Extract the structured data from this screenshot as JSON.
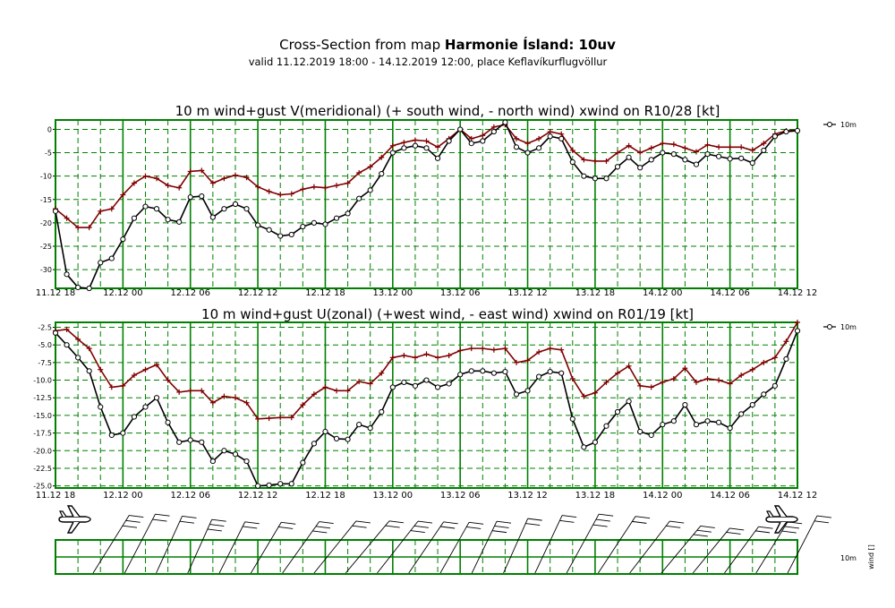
{
  "header": {
    "title_prefix": "Cross-Section from map ",
    "title_bold": "Harmonie Ísland: 10uv",
    "subtitle": "valid 11.12.2019 18:00 - 14.12.2019 12:00, place Keflavíkurflugvöllur"
  },
  "colors": {
    "grid": "#008000",
    "wind": "#000000",
    "gust": "#800000"
  },
  "x_labels": [
    "11.12 18",
    "12.12 00",
    "12.12 06",
    "12.12 12",
    "12.12 18",
    "13.12 00",
    "13.12 06",
    "13.12 12",
    "13.12 18",
    "14.12 00",
    "14.12 06",
    "14.12 12"
  ],
  "legend_label": "10m",
  "barb_panel": {
    "level_label": "10m",
    "axis_label": "wind []"
  },
  "chart_data": [
    {
      "type": "line",
      "title": "10 m wind+gust V(meridional) (+ south wind, - north wind) xwind on R10/28 [kt]",
      "ylim": [
        -34,
        2
      ],
      "yticks": [
        0,
        -5,
        -10,
        -15,
        -20,
        -25,
        -30
      ],
      "ytick_labels": [
        "0",
        "-5",
        "-10",
        "-15",
        "-20",
        "-25",
        "-30"
      ],
      "series": [
        {
          "name": "10m",
          "values": [
            -17.5,
            -31,
            -33.8,
            -34,
            -28.5,
            -27.6,
            -23.5,
            -19,
            -16.5,
            -17,
            -19.3,
            -19.8,
            -14.5,
            -14.3,
            -18.8,
            -17,
            -16,
            -17,
            -20.5,
            -21.5,
            -22.8,
            -22.5,
            -20.8,
            -20,
            -20.3,
            -19,
            -18,
            -14.8,
            -13,
            -9.5,
            -5,
            -4,
            -3.5,
            -4,
            -6.2,
            -2.5,
            0,
            -3,
            -2.5,
            -0.5,
            1.5,
            -3.8,
            -5,
            -4,
            -1.5,
            -2,
            -7,
            -10,
            -10.5,
            -10.5,
            -8,
            -6,
            -8.2,
            -6.5,
            -5,
            -5.3,
            -6.5,
            -7.5,
            -5.3,
            -5.8,
            -6.3,
            -6.2,
            -7.2,
            -4.5,
            -1.5,
            -0.5,
            -0.3
          ]
        },
        {
          "name": "gust",
          "values": [
            -17,
            -19,
            -21,
            -21,
            -17.5,
            -17,
            -14,
            -11.5,
            -10,
            -10.5,
            -12,
            -12.5,
            -9,
            -8.8,
            -11.5,
            -10.5,
            -9.8,
            -10.3,
            -12.3,
            -13.3,
            -14,
            -13.8,
            -12.8,
            -12.3,
            -12.5,
            -12,
            -11.5,
            -9.3,
            -8,
            -6,
            -3.5,
            -2.8,
            -2.3,
            -2.5,
            -3.8,
            -2,
            0,
            -2,
            -1.3,
            0.5,
            1,
            -2,
            -3,
            -2,
            -0.5,
            -1,
            -4.5,
            -6.5,
            -6.8,
            -6.8,
            -5,
            -3.5,
            -5,
            -4,
            -3,
            -3.2,
            -4,
            -4.8,
            -3.3,
            -3.8,
            -3.8,
            -3.8,
            -4.5,
            -3,
            -1,
            -0.3,
            -0.2
          ]
        }
      ]
    },
    {
      "type": "line",
      "title": "10 m wind+gust U(zonal) (+west wind, - east wind) xwind on R01/19 [kt]",
      "ylim": [
        -25.3,
        -1.8
      ],
      "yticks": [
        -2.5,
        -5,
        -7.5,
        -10,
        -12.5,
        -15,
        -17.5,
        -20,
        -22.5,
        -25
      ],
      "ytick_labels": [
        "-2.5",
        "-5.0",
        "-7.5",
        "-10.0",
        "-12.5",
        "-15.0",
        "-17.5",
        "-20.0",
        "-22.5",
        "-25.0"
      ],
      "series": [
        {
          "name": "10m",
          "values": [
            -3.3,
            -5,
            -6.8,
            -8.7,
            -13.8,
            -17.8,
            -17.5,
            -15.2,
            -13.8,
            -12.5,
            -16,
            -18.8,
            -18.5,
            -18.8,
            -21.5,
            -20,
            -20.5,
            -21.5,
            -25,
            -24.9,
            -24.7,
            -24.7,
            -21.7,
            -19,
            -17.3,
            -18.3,
            -18.4,
            -16.3,
            -16.8,
            -14.5,
            -11,
            -10.3,
            -10.8,
            -10,
            -11,
            -10.5,
            -9.2,
            -8.7,
            -8.7,
            -9,
            -8.8,
            -12,
            -11.5,
            -9.5,
            -8.8,
            -9,
            -15.5,
            -19.5,
            -18.8,
            -16.5,
            -14.5,
            -13,
            -17.3,
            -17.8,
            -16.3,
            -15.8,
            -13.5,
            -16.3,
            -15.8,
            -16,
            -16.8,
            -14.8,
            -13.5,
            -12,
            -10.8,
            -7,
            -3
          ]
        },
        {
          "name": "gust",
          "values": [
            -3,
            -2.8,
            -4.2,
            -5.5,
            -8.5,
            -11,
            -10.8,
            -9.3,
            -8.5,
            -7.8,
            -10,
            -11.7,
            -11.5,
            -11.5,
            -13.2,
            -12.3,
            -12.5,
            -13.2,
            -15.5,
            -15.4,
            -15.3,
            -15.3,
            -13.5,
            -12,
            -11,
            -11.5,
            -11.5,
            -10.2,
            -10.5,
            -9,
            -6.8,
            -6.5,
            -6.8,
            -6.3,
            -6.8,
            -6.5,
            -5.8,
            -5.5,
            -5.5,
            -5.7,
            -5.5,
            -7.5,
            -7.2,
            -6,
            -5.5,
            -5.7,
            -9.8,
            -12.3,
            -11.8,
            -10.3,
            -9,
            -8,
            -10.8,
            -11,
            -10.3,
            -9.8,
            -8.3,
            -10.3,
            -9.8,
            -10,
            -10.5,
            -9.3,
            -8.5,
            -7.5,
            -6.8,
            -4.5,
            -1.8
          ]
        }
      ]
    }
  ]
}
